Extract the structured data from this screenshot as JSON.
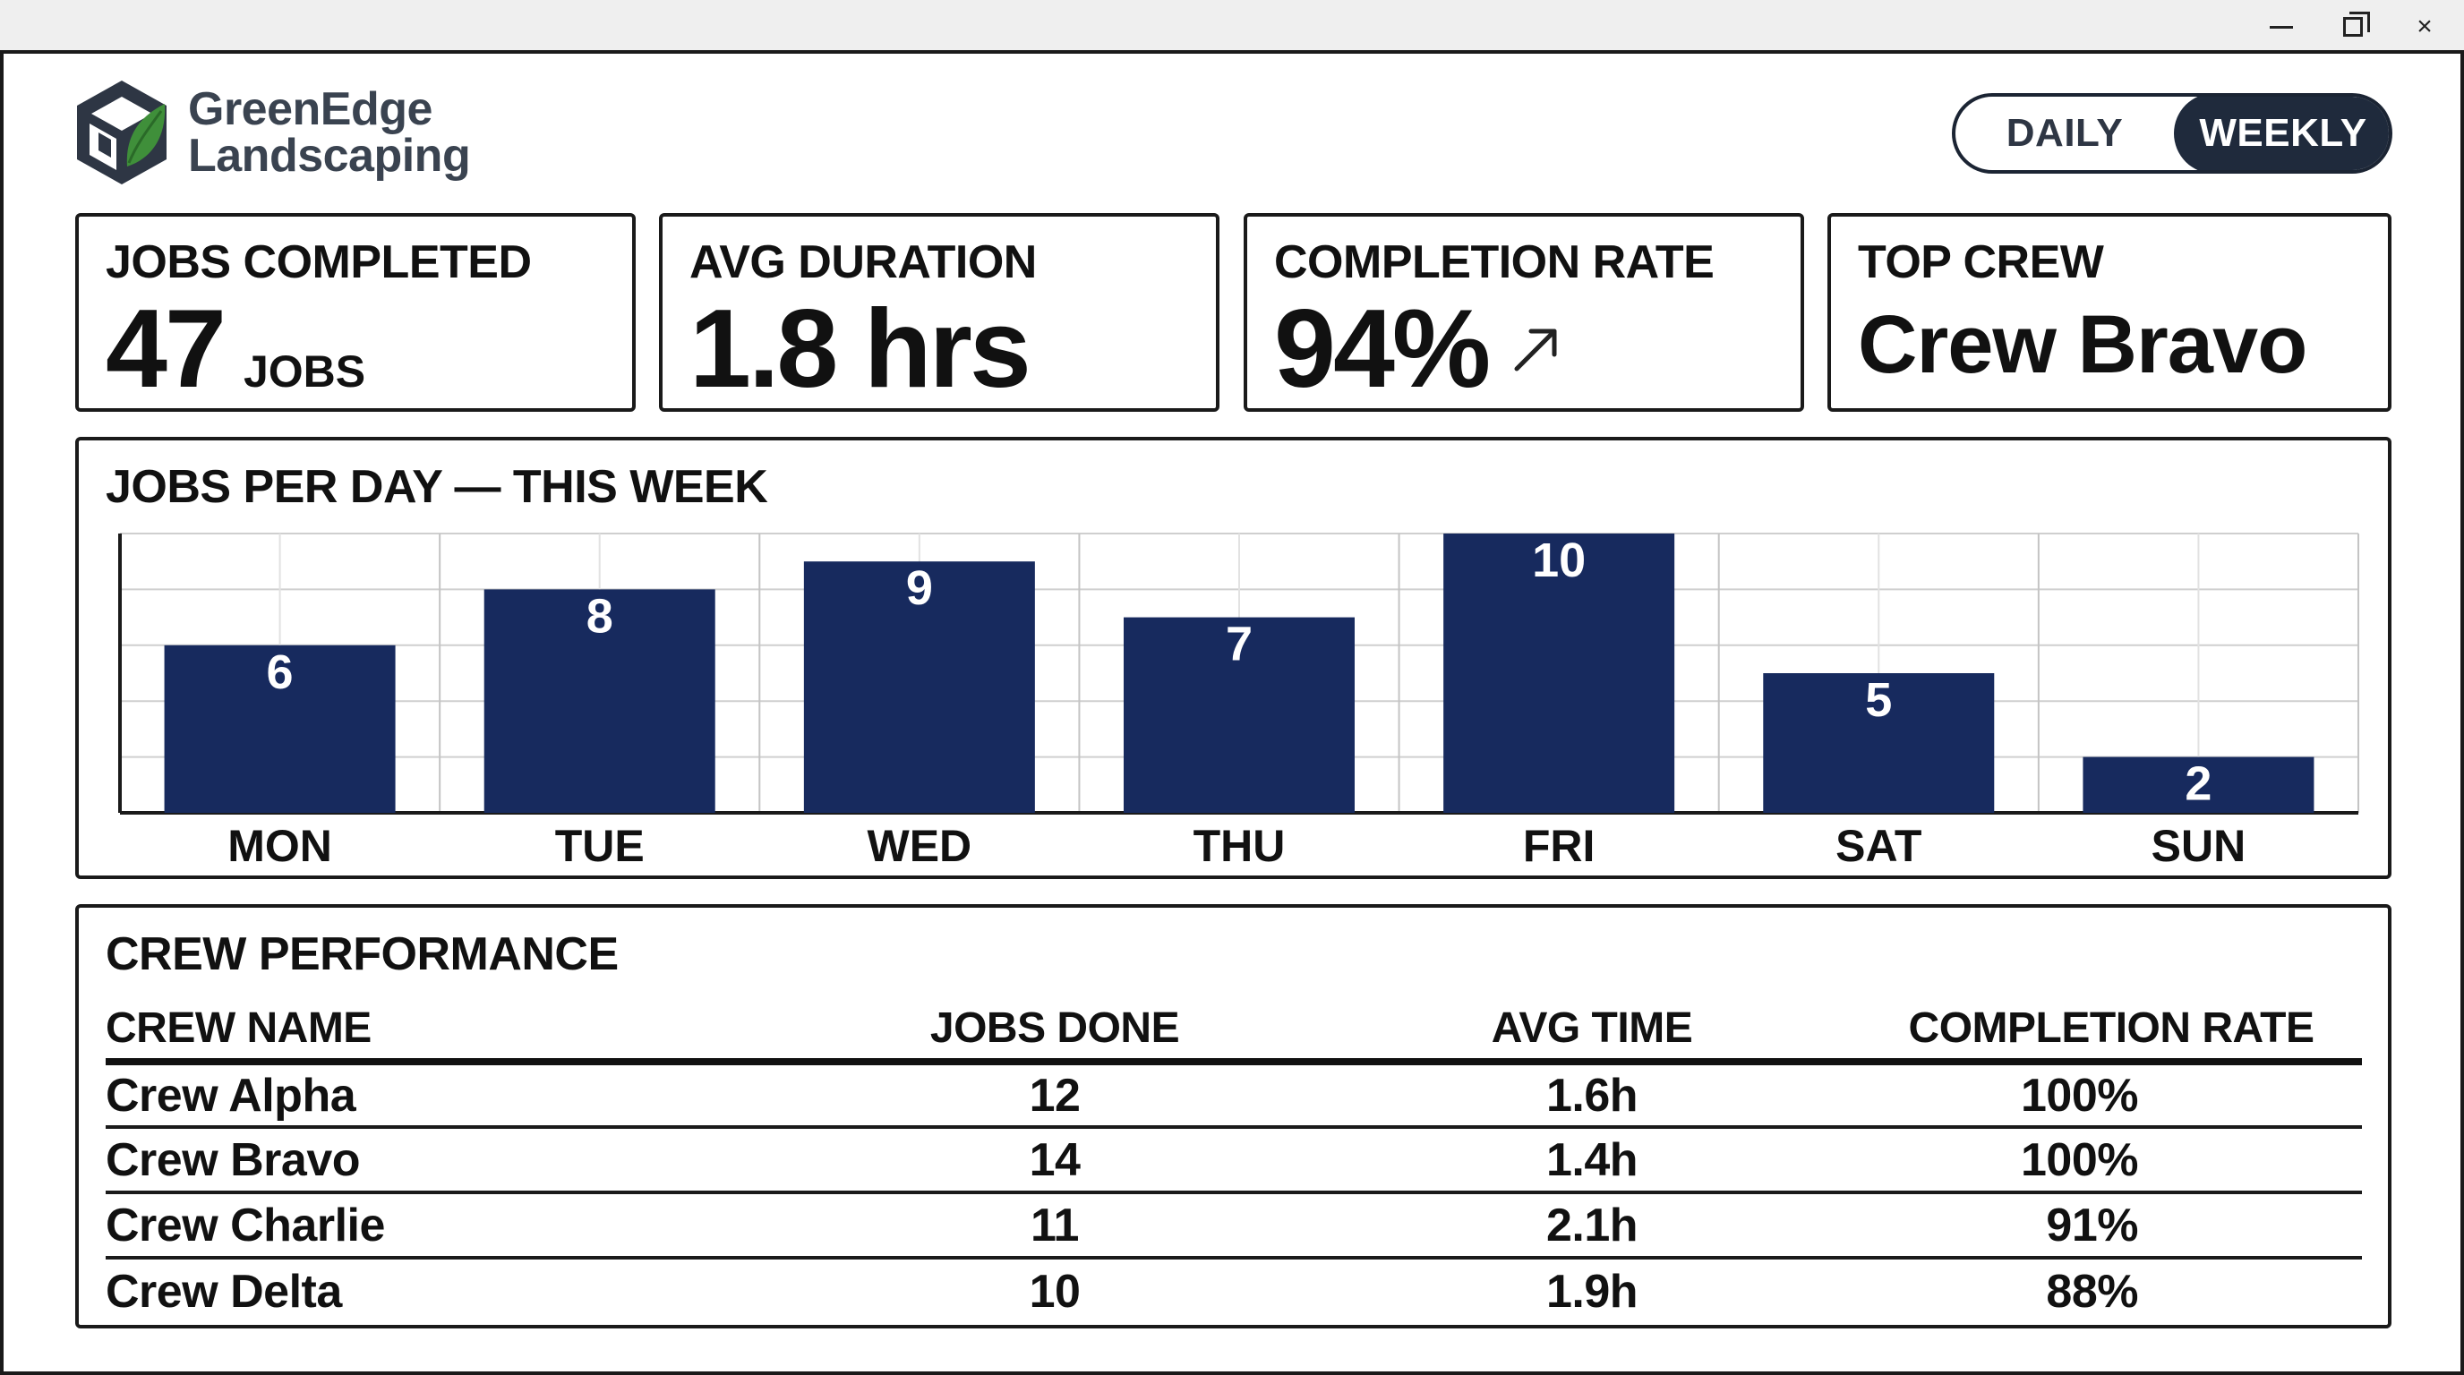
{
  "window": {
    "controls": {
      "minimize": "minimize-icon",
      "maximize": "maximize-icon",
      "close": "×"
    }
  },
  "brand": {
    "name_line1": "GreenEdge",
    "name_line2": "Landscaping",
    "logo_icon": "leaf-cube-logo",
    "colors": {
      "text": "#3a4350",
      "leaf": "#3f8f3a",
      "cube": "#2e3644"
    }
  },
  "period_toggle": {
    "options": [
      "DAILY",
      "WEEKLY"
    ],
    "selected": "WEEKLY"
  },
  "kpis": {
    "jobs_completed": {
      "label": "JOBS COMPLETED",
      "value": "47",
      "unit": "JOBS"
    },
    "avg_duration": {
      "label": "AVG DURATION",
      "value": "1.8 hrs"
    },
    "completion_rate": {
      "label": "COMPLETION RATE",
      "value": "94%",
      "trend_icon": "arrow-up-right-icon"
    },
    "top_crew": {
      "label": "TOP CREW",
      "value": "Crew Bravo"
    }
  },
  "chart_data": {
    "type": "bar",
    "title": "JOBS PER DAY — THIS WEEK",
    "categories": [
      "MON",
      "TUE",
      "WED",
      "THU",
      "FRI",
      "SAT",
      "SUN"
    ],
    "values": [
      6,
      8,
      9,
      7,
      10,
      5,
      2
    ],
    "ylim": [
      0,
      10
    ],
    "grid": true,
    "bar_color": "#172a5e",
    "xlabel": "",
    "ylabel": ""
  },
  "crew_table": {
    "title": "CREW PERFORMANCE",
    "columns": [
      "CREW NAME",
      "JOBS DONE",
      "AVG TIME",
      "COMPLETION RATE"
    ],
    "rows": [
      [
        "Crew Alpha",
        "12",
        "1.6h",
        "100%"
      ],
      [
        "Crew Bravo",
        "14",
        "1.4h",
        "100%"
      ],
      [
        "Crew Charlie",
        "11",
        "2.1h",
        "91%"
      ],
      [
        "Crew Delta",
        "10",
        "1.9h",
        "88%"
      ]
    ]
  }
}
